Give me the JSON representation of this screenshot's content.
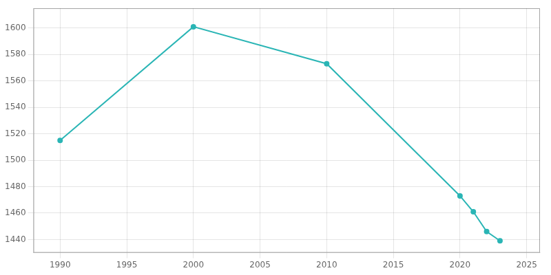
{
  "chart_data": {
    "type": "line",
    "x": [
      1990,
      2000,
      2010,
      2020,
      2021,
      2022,
      2023
    ],
    "values": [
      1515,
      1601,
      1573,
      1473,
      1461,
      1446,
      1439
    ],
    "color": "#2ab5b5",
    "marker": "circle",
    "xlim": [
      1988,
      2026
    ],
    "ylim": [
      1430,
      1615
    ],
    "xticks": [
      1990,
      1995,
      2000,
      2005,
      2010,
      2015,
      2020,
      2025
    ],
    "yticks": [
      1440,
      1460,
      1480,
      1500,
      1520,
      1540,
      1560,
      1580,
      1600
    ],
    "grid": true
  }
}
